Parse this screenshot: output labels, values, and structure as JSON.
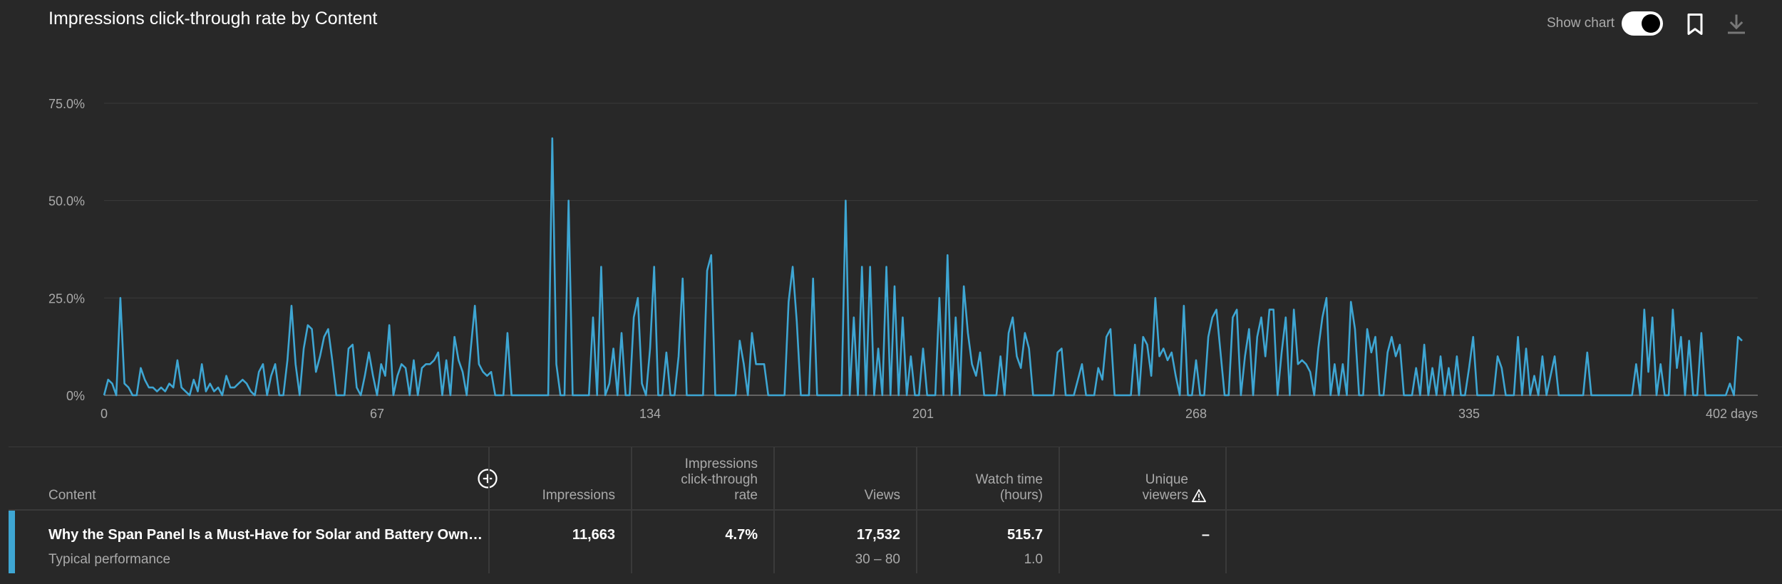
{
  "header": {
    "title": "Impressions click-through rate by Content",
    "show_chart_label": "Show chart",
    "show_chart_on": true,
    "icons": [
      "toggle-switch",
      "bookmark-icon",
      "download-icon"
    ]
  },
  "colors": {
    "background": "#282828",
    "series": "#3ea6d3",
    "grid": "#3a3a3a",
    "axis_text": "#aaaaaa"
  },
  "chart_data": {
    "type": "line",
    "title": "Impressions click-through rate by Content",
    "x_ticks": [
      "0",
      "67",
      "134",
      "201",
      "268",
      "335",
      "402 days"
    ],
    "x_tick_values": [
      0,
      67,
      134,
      201,
      268,
      335,
      402
    ],
    "y_ticks": [
      "0%",
      "25.0%",
      "50.0%",
      "75.0%"
    ],
    "y_tick_values": [
      0,
      25,
      50,
      75
    ],
    "xlim": [
      0,
      402
    ],
    "ylim": [
      0,
      75
    ],
    "grid": true,
    "series": [
      {
        "values": [
          0,
          4,
          3,
          0,
          25,
          3,
          2,
          0,
          0,
          7,
          4,
          2,
          2,
          1,
          2,
          1,
          3,
          2,
          9,
          2,
          1,
          0,
          4,
          1,
          8,
          1,
          3,
          1,
          2,
          0,
          5,
          2,
          2,
          3,
          4,
          3,
          1,
          0,
          6,
          8,
          0,
          5,
          8,
          0,
          0,
          9,
          23,
          8,
          0,
          12,
          18,
          17,
          6,
          10,
          15,
          17,
          9,
          0,
          0,
          0,
          12,
          13,
          2,
          0,
          5,
          11,
          5,
          0,
          8,
          5,
          18,
          0,
          5,
          8,
          7,
          0,
          9,
          0,
          7,
          8,
          8,
          9,
          11,
          0,
          9,
          0,
          15,
          9,
          6,
          0,
          12,
          23,
          8,
          6,
          5,
          6,
          0,
          0,
          0,
          16,
          0,
          0,
          0,
          0,
          0,
          0,
          0,
          0,
          0,
          0,
          0,
          0,
          0,
          0,
          0,
          0,
          0,
          0,
          0,
          0,
          0,
          0,
          0,
          0,
          0,
          0,
          0,
          0,
          0,
          0,
          0,
          0,
          0,
          0,
          0,
          0,
          0,
          0,
          0,
          0,
          0,
          0,
          0,
          0,
          0,
          0,
          0,
          0,
          0,
          0,
          0,
          0,
          0,
          0,
          0,
          0,
          0,
          0,
          0,
          0,
          0,
          0,
          0,
          0,
          0,
          0,
          0,
          0,
          0,
          0,
          0,
          0,
          0,
          0,
          0,
          0,
          0,
          0,
          0,
          0,
          0,
          0,
          0,
          0,
          0,
          0,
          0,
          0,
          0,
          0,
          0,
          0,
          0,
          0,
          0,
          0,
          0,
          0,
          0,
          0,
          0,
          0,
          0,
          0,
          0,
          0,
          0,
          0,
          0,
          0,
          0,
          0,
          0,
          0,
          0,
          0,
          0,
          0,
          0,
          0,
          0,
          0,
          0,
          0,
          0,
          0,
          0,
          0,
          0,
          0,
          0,
          0,
          0,
          0,
          0,
          0,
          0,
          0,
          0,
          0,
          0,
          0,
          0,
          0,
          0,
          0,
          0,
          0,
          0,
          0,
          0,
          0,
          0,
          0,
          0,
          0,
          0,
          0,
          0,
          0,
          0,
          0,
          0,
          0,
          0,
          0,
          0,
          0,
          0,
          0,
          0,
          0,
          0,
          0,
          0,
          0,
          0,
          0,
          0,
          0,
          0,
          0,
          0,
          0,
          0,
          0,
          0,
          0,
          0,
          0,
          0,
          0,
          0,
          0,
          0,
          0,
          0,
          0,
          0,
          0,
          0,
          0,
          0,
          0,
          0,
          0,
          0,
          0,
          0,
          0,
          0,
          0,
          0,
          0,
          0,
          0,
          0,
          0,
          0,
          0,
          0,
          0,
          0,
          0,
          0,
          0,
          0,
          0,
          0,
          0,
          0,
          0,
          0,
          0,
          0,
          0,
          0,
          0,
          0,
          0,
          0,
          0,
          0,
          0,
          0,
          0,
          0,
          0,
          0,
          0,
          0,
          0,
          0,
          0,
          0,
          0,
          0,
          0,
          0,
          0,
          0,
          0,
          0,
          0,
          0,
          0,
          0,
          0,
          0,
          0,
          0,
          0,
          0,
          0,
          0,
          0,
          0,
          0,
          0,
          0,
          0,
          0,
          0,
          0,
          0,
          0,
          0,
          0,
          0,
          0,
          0,
          0,
          0,
          0,
          0,
          0,
          0,
          0,
          0,
          0,
          0,
          0,
          0,
          0,
          0,
          0,
          0,
          0,
          0,
          0,
          0,
          0,
          0,
          0,
          0,
          0,
          0,
          0,
          0,
          0,
          0,
          0,
          0,
          0,
          0,
          0,
          0,
          0,
          0,
          0,
          0,
          0,
          0,
          0,
          0,
          0,
          0,
          0,
          0,
          0,
          0,
          0,
          0,
          0,
          0
        ],
        "overrides": {
          "105": 0,
          "106": 0,
          "107": 0,
          "108": 0,
          "109": 0,
          "110": 66,
          "111": 8,
          "112": 0,
          "113": 0,
          "114": 50,
          "115": 0,
          "116": 0,
          "117": 0,
          "118": 0,
          "119": 0,
          "120": 20,
          "121": 0,
          "122": 33,
          "123": 0,
          "124": 3,
          "125": 12,
          "126": 0,
          "127": 16,
          "128": 0,
          "129": 0,
          "130": 20,
          "131": 25,
          "132": 3,
          "133": 0,
          "134": 12,
          "135": 33,
          "136": 0,
          "137": 0,
          "138": 11,
          "139": 0,
          "140": 0,
          "141": 10,
          "142": 30,
          "143": 0,
          "144": 0,
          "145": 0,
          "146": 0,
          "147": 0,
          "148": 32,
          "149": 36,
          "150": 0,
          "151": 0,
          "152": 0,
          "153": 0,
          "154": 0,
          "155": 0,
          "156": 14,
          "157": 8,
          "158": 0,
          "159": 16,
          "160": 8,
          "161": 8,
          "162": 8,
          "163": 0,
          "164": 0,
          "165": 0,
          "166": 0,
          "167": 0,
          "168": 24,
          "169": 33,
          "170": 19,
          "171": 0,
          "172": 0,
          "173": 0,
          "174": 30,
          "175": 0,
          "176": 0,
          "177": 0,
          "178": 0,
          "179": 0,
          "180": 0,
          "181": 0,
          "182": 50,
          "183": 0,
          "184": 20,
          "185": 0,
          "186": 33,
          "187": 0,
          "188": 33,
          "189": 0,
          "190": 12,
          "191": 0,
          "192": 33,
          "193": 0,
          "194": 28,
          "195": 0,
          "196": 20,
          "197": 0,
          "198": 10,
          "199": 0,
          "200": 0,
          "201": 12,
          "202": 0,
          "203": 0,
          "204": 0,
          "205": 25,
          "206": 0,
          "207": 36,
          "208": 0,
          "209": 20,
          "210": 0,
          "211": 28,
          "212": 16,
          "213": 8,
          "214": 5,
          "215": 11,
          "216": 0,
          "217": 0,
          "218": 0,
          "219": 0,
          "220": 10,
          "221": 0,
          "222": 16,
          "223": 20,
          "224": 10,
          "225": 7,
          "226": 16,
          "227": 12,
          "228": 0,
          "229": 0,
          "230": 0,
          "231": 0,
          "232": 0,
          "233": 0,
          "234": 11,
          "235": 12,
          "236": 0,
          "237": 0,
          "238": 0,
          "239": 4,
          "240": 8,
          "241": 0,
          "242": 0,
          "243": 0,
          "244": 7,
          "245": 4,
          "246": 15,
          "247": 17,
          "248": 0,
          "249": 0,
          "250": 0,
          "251": 0,
          "252": 0,
          "253": 13,
          "254": 0,
          "255": 15,
          "256": 13,
          "257": 5,
          "258": 25,
          "259": 10,
          "260": 12,
          "261": 9,
          "262": 11,
          "263": 5,
          "264": 0,
          "265": 23,
          "266": 0,
          "267": 0,
          "268": 9,
          "269": 0,
          "270": 0,
          "271": 15,
          "272": 20,
          "273": 22,
          "274": 11,
          "275": 0,
          "276": 0,
          "277": 20,
          "278": 22,
          "279": 0,
          "280": 10,
          "281": 17,
          "282": 0,
          "283": 15,
          "284": 20,
          "285": 10,
          "286": 22,
          "287": 22,
          "288": 0,
          "289": 11,
          "290": 20,
          "291": 0,
          "292": 22,
          "293": 8,
          "294": 9,
          "295": 8,
          "296": 6,
          "297": 0,
          "298": 12,
          "299": 20,
          "300": 25,
          "301": 0,
          "302": 8,
          "303": 0,
          "304": 8,
          "305": 0,
          "306": 24,
          "307": 17,
          "308": 0,
          "309": 0,
          "310": 17,
          "311": 11,
          "312": 15,
          "313": 0,
          "314": 0,
          "315": 11,
          "316": 15,
          "317": 10,
          "318": 13,
          "319": 0,
          "320": 0,
          "321": 0,
          "322": 7,
          "323": 0,
          "324": 13,
          "325": 0,
          "326": 7,
          "327": 0,
          "328": 10,
          "329": 0,
          "330": 7,
          "331": 0,
          "332": 10,
          "333": 0,
          "334": 0,
          "335": 7,
          "336": 15,
          "337": 0,
          "338": 0,
          "339": 0,
          "340": 0,
          "341": 0,
          "342": 10,
          "343": 7,
          "344": 0,
          "345": 0,
          "346": 0,
          "347": 15,
          "348": 0,
          "349": 12,
          "350": 0,
          "351": 5,
          "352": 0,
          "353": 10,
          "354": 0,
          "355": 5,
          "356": 10,
          "357": 0,
          "358": 0,
          "359": 0,
          "360": 0,
          "361": 0,
          "362": 0,
          "363": 0,
          "364": 11,
          "365": 0,
          "366": 0,
          "367": 0,
          "368": 0,
          "369": 0,
          "370": 0,
          "371": 0,
          "372": 0,
          "373": 0,
          "374": 0,
          "375": 0,
          "376": 8,
          "377": 0,
          "378": 22,
          "379": 6,
          "380": 20,
          "381": 0,
          "382": 8,
          "383": 0,
          "384": 0,
          "385": 22,
          "386": 7,
          "387": 15,
          "388": 0,
          "389": 14,
          "390": 0,
          "391": 0,
          "392": 16,
          "393": 0,
          "394": 0,
          "395": 0,
          "396": 0,
          "397": 0,
          "398": 0,
          "399": 3,
          "400": 0,
          "401": 15,
          "402": 14
        }
      }
    ]
  },
  "table": {
    "headers": {
      "content": "Content",
      "impressions": "Impressions",
      "ctr": [
        "Impressions",
        "click-through",
        "rate"
      ],
      "views": "Views",
      "watch_time": [
        "Watch time",
        "(hours)"
      ],
      "unique": [
        "Unique",
        "viewers"
      ]
    },
    "row": {
      "title": "Why the Span Panel Is a Must-Have for Solar and Battery Owners | Cust…",
      "subtitle": "Typical performance",
      "impressions": "11,663",
      "ctr": "4.7%",
      "views": "17,532",
      "views_typical": "30 – 80",
      "watch_time": "515.7",
      "watch_time_typical": "1.0",
      "unique": "–"
    }
  }
}
